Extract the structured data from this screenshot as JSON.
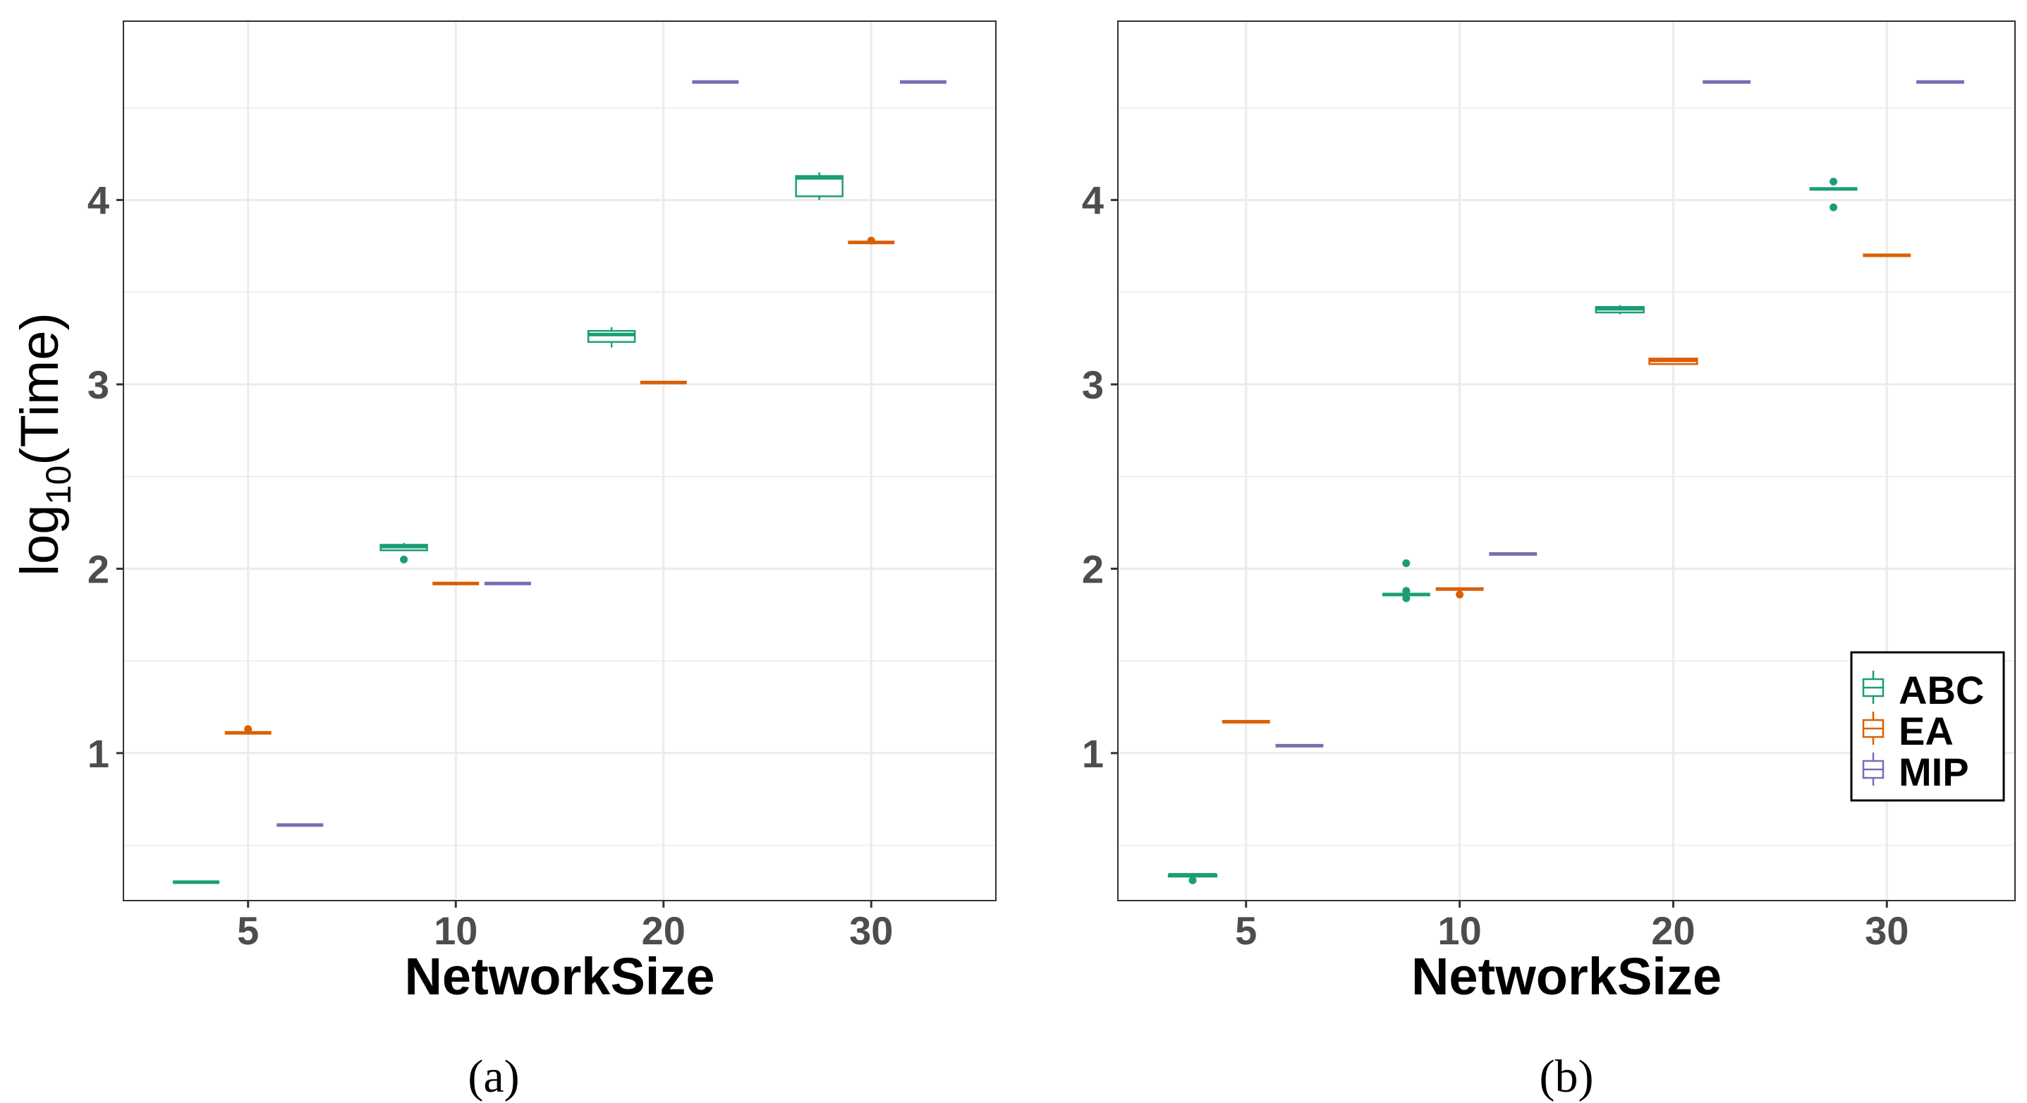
{
  "colors": {
    "ABC": "#1b9e77",
    "EA": "#d95f02",
    "MIP": "#7570b3",
    "grid": "#ebebeb",
    "panel_border": "#333333"
  },
  "y_axis_label": {
    "base": "log",
    "subscript": "10",
    "rest": "(Time)"
  },
  "legend": {
    "position": "bottom-right of panel b",
    "entries": [
      "ABC",
      "EA",
      "MIP"
    ]
  },
  "chart_data": [
    {
      "type": "boxplot",
      "caption": "(a)",
      "xlabel": "NetworkSize",
      "categories": [
        "5",
        "10",
        "20",
        "30"
      ],
      "ylim": [
        0.2,
        4.97
      ],
      "yticks": [
        1,
        2,
        3,
        4
      ],
      "series": [
        {
          "name": "ABC",
          "boxes": [
            {
              "min": 0.3,
              "q1": 0.3,
              "median": 0.3,
              "q3": 0.3,
              "max": 0.3,
              "outliers": []
            },
            {
              "min": 2.1,
              "q1": 2.1,
              "median": 2.12,
              "q3": 2.13,
              "max": 2.14,
              "outliers": [
                2.05
              ]
            },
            {
              "min": 3.2,
              "q1": 3.23,
              "median": 3.27,
              "q3": 3.29,
              "max": 3.31,
              "outliers": []
            },
            {
              "min": 4.0,
              "q1": 4.02,
              "median": 4.12,
              "q3": 4.13,
              "max": 4.15,
              "outliers": []
            }
          ]
        },
        {
          "name": "EA",
          "boxes": [
            {
              "min": 1.11,
              "q1": 1.11,
              "median": 1.11,
              "q3": 1.11,
              "max": 1.11,
              "outliers": [
                1.13
              ]
            },
            {
              "min": 1.92,
              "q1": 1.92,
              "median": 1.92,
              "q3": 1.92,
              "max": 1.92,
              "outliers": []
            },
            {
              "min": 3.01,
              "q1": 3.01,
              "median": 3.01,
              "q3": 3.01,
              "max": 3.01,
              "outliers": []
            },
            {
              "min": 3.77,
              "q1": 3.77,
              "median": 3.77,
              "q3": 3.77,
              "max": 3.77,
              "outliers": [
                3.78
              ]
            }
          ]
        },
        {
          "name": "MIP",
          "boxes": [
            {
              "min": 0.61,
              "q1": 0.61,
              "median": 0.61,
              "q3": 0.61,
              "max": 0.61,
              "outliers": []
            },
            {
              "min": 1.92,
              "q1": 1.92,
              "median": 1.92,
              "q3": 1.92,
              "max": 1.92,
              "outliers": []
            },
            {
              "min": 4.64,
              "q1": 4.64,
              "median": 4.64,
              "q3": 4.64,
              "max": 4.64,
              "outliers": []
            },
            {
              "min": 4.64,
              "q1": 4.64,
              "median": 4.64,
              "q3": 4.64,
              "max": 4.64,
              "outliers": []
            }
          ]
        }
      ]
    },
    {
      "type": "boxplot",
      "caption": "(b)",
      "xlabel": "NetworkSize",
      "categories": [
        "5",
        "10",
        "20",
        "30"
      ],
      "ylim": [
        0.2,
        4.97
      ],
      "yticks": [
        1,
        2,
        3,
        4
      ],
      "series": [
        {
          "name": "ABC",
          "boxes": [
            {
              "min": 0.33,
              "q1": 0.33,
              "median": 0.34,
              "q3": 0.34,
              "max": 0.35,
              "outliers": [
                0.31
              ]
            },
            {
              "min": 1.86,
              "q1": 1.86,
              "median": 1.86,
              "q3": 1.86,
              "max": 1.86,
              "outliers": [
                1.84,
                1.88,
                2.03
              ]
            },
            {
              "min": 3.38,
              "q1": 3.39,
              "median": 3.41,
              "q3": 3.42,
              "max": 3.43,
              "outliers": []
            },
            {
              "min": 4.06,
              "q1": 4.06,
              "median": 4.06,
              "q3": 4.06,
              "max": 4.06,
              "outliers": [
                3.96,
                4.1
              ]
            }
          ]
        },
        {
          "name": "EA",
          "boxes": [
            {
              "min": 1.17,
              "q1": 1.17,
              "median": 1.17,
              "q3": 1.17,
              "max": 1.17,
              "outliers": []
            },
            {
              "min": 1.89,
              "q1": 1.89,
              "median": 1.89,
              "q3": 1.89,
              "max": 1.89,
              "outliers": [
                1.86
              ]
            },
            {
              "min": 3.11,
              "q1": 3.11,
              "median": 3.13,
              "q3": 3.14,
              "max": 3.14,
              "outliers": []
            },
            {
              "min": 3.7,
              "q1": 3.7,
              "median": 3.7,
              "q3": 3.7,
              "max": 3.7,
              "outliers": []
            }
          ]
        },
        {
          "name": "MIP",
          "boxes": [
            {
              "min": 1.04,
              "q1": 1.04,
              "median": 1.04,
              "q3": 1.04,
              "max": 1.04,
              "outliers": []
            },
            {
              "min": 2.08,
              "q1": 2.08,
              "median": 2.08,
              "q3": 2.08,
              "max": 2.08,
              "outliers": []
            },
            {
              "min": 4.64,
              "q1": 4.64,
              "median": 4.64,
              "q3": 4.64,
              "max": 4.64,
              "outliers": []
            },
            {
              "min": 4.64,
              "q1": 4.64,
              "median": 4.64,
              "q3": 4.64,
              "max": 4.64,
              "outliers": []
            }
          ]
        }
      ]
    }
  ]
}
